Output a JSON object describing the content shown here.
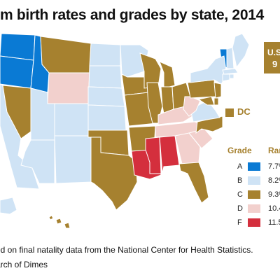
{
  "title": "m birth rates and grades by state, 2014",
  "us_badge": {
    "line1": "U.S",
    "line2": "9"
  },
  "dc": {
    "label": "DC",
    "grade": "C"
  },
  "colors": {
    "A": "#0a7ad4",
    "B": "#cfe3f5",
    "C": "#a6812f",
    "D": "#f2d0cd",
    "F": "#d42f3d",
    "border": "#ffffff"
  },
  "legend": {
    "grade_header": "Grade",
    "range_header": "Ran",
    "rows": [
      {
        "grade": "A",
        "range": "7.7% to"
      },
      {
        "grade": "B",
        "range": "8.2% to"
      },
      {
        "grade": "C",
        "range": "9.3% to"
      },
      {
        "grade": "D",
        "range": "10.4% t"
      },
      {
        "grade": "F",
        "range": "11.5% t"
      }
    ]
  },
  "footer": {
    "note": "ed on final natality data from the National Center for Health Statistics.",
    "credit": "arch of Dimes"
  },
  "states": [
    {
      "name": "Washington",
      "grade": "A"
    },
    {
      "name": "Oregon",
      "grade": "A"
    },
    {
      "name": "Idaho",
      "grade": "A"
    },
    {
      "name": "Vermont",
      "grade": "A"
    },
    {
      "name": "California",
      "grade": "B"
    },
    {
      "name": "Nevada",
      "grade": "C"
    },
    {
      "name": "Montana",
      "grade": "C"
    },
    {
      "name": "Wyoming",
      "grade": "D"
    },
    {
      "name": "Utah",
      "grade": "B"
    },
    {
      "name": "Colorado",
      "grade": "B"
    },
    {
      "name": "Arizona",
      "grade": "B"
    },
    {
      "name": "New Mexico",
      "grade": "B"
    },
    {
      "name": "North Dakota",
      "grade": "B"
    },
    {
      "name": "South Dakota",
      "grade": "B"
    },
    {
      "name": "Nebraska",
      "grade": "B"
    },
    {
      "name": "Kansas",
      "grade": "B"
    },
    {
      "name": "Oklahoma",
      "grade": "C"
    },
    {
      "name": "Texas",
      "grade": "C"
    },
    {
      "name": "Minnesota",
      "grade": "B"
    },
    {
      "name": "Iowa",
      "grade": "C"
    },
    {
      "name": "Missouri",
      "grade": "C"
    },
    {
      "name": "Arkansas",
      "grade": "C"
    },
    {
      "name": "Louisiana",
      "grade": "F"
    },
    {
      "name": "Wisconsin",
      "grade": "C"
    },
    {
      "name": "Illinois",
      "grade": "C"
    },
    {
      "name": "Michigan",
      "grade": "C"
    },
    {
      "name": "Indiana",
      "grade": "C"
    },
    {
      "name": "Ohio",
      "grade": "C"
    },
    {
      "name": "Kentucky",
      "grade": "D"
    },
    {
      "name": "Tennessee",
      "grade": "D"
    },
    {
      "name": "Mississippi",
      "grade": "F"
    },
    {
      "name": "Alabama",
      "grade": "F"
    },
    {
      "name": "Georgia",
      "grade": "D"
    },
    {
      "name": "South Carolina",
      "grade": "D"
    },
    {
      "name": "North Carolina",
      "grade": "C"
    },
    {
      "name": "Virginia",
      "grade": "B"
    },
    {
      "name": "West Virginia",
      "grade": "D"
    },
    {
      "name": "Florida",
      "grade": "C"
    },
    {
      "name": "Pennsylvania",
      "grade": "C"
    },
    {
      "name": "New York",
      "grade": "B"
    },
    {
      "name": "Maryland",
      "grade": "C"
    },
    {
      "name": "Delaware",
      "grade": "C"
    },
    {
      "name": "New Jersey",
      "grade": "C"
    },
    {
      "name": "Connecticut",
      "grade": "B"
    },
    {
      "name": "Rhode Island",
      "grade": "B"
    },
    {
      "name": "Massachusetts",
      "grade": "B"
    },
    {
      "name": "New Hampshire",
      "grade": "B"
    },
    {
      "name": "Maine",
      "grade": "B"
    },
    {
      "name": "Alaska",
      "grade": "B"
    },
    {
      "name": "Hawaii",
      "grade": "C"
    }
  ]
}
